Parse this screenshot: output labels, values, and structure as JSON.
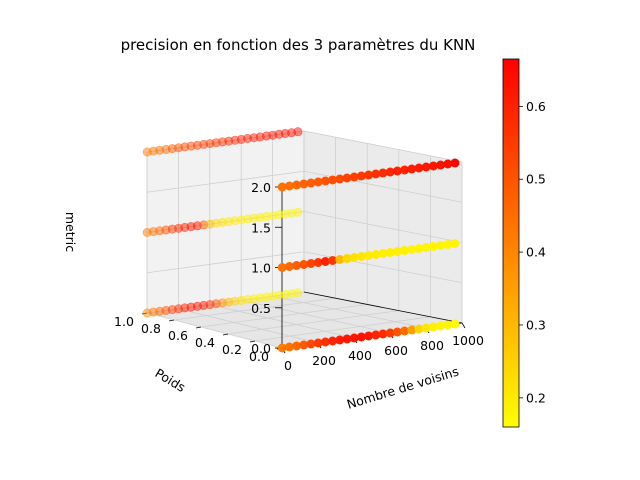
{
  "chart_data": {
    "type": "scatter",
    "title": "precision en fonction des 3 paramètres du KNN",
    "xlabel": "Nombre de voisins",
    "ylabel": "Poids",
    "zlabel": "metric",
    "xlim": [
      0,
      1000
    ],
    "ylim": [
      0,
      1
    ],
    "zlim": [
      0,
      2
    ],
    "xticks": [
      "0",
      "200",
      "400",
      "600",
      "800",
      "1000"
    ],
    "yticks": [
      "0.0",
      "0.2",
      "0.4",
      "0.6",
      "0.8",
      "1.0"
    ],
    "zticks": [
      "0.0",
      "0.5",
      "1.0",
      "1.5",
      "2.0"
    ],
    "colorbar": {
      "colormap": "autumn_r",
      "range": [
        0.16,
        0.665
      ],
      "ticks": [
        "0.2",
        "0.3",
        "0.4",
        "0.5",
        "0.6"
      ],
      "low_color": "#ffff00",
      "high_color": "#ff0000"
    },
    "grid": true,
    "series": [
      {
        "poids": 1,
        "metric": 2,
        "nombre_de_voisins": [
          1,
          41,
          81,
          121,
          161,
          201,
          241,
          281,
          321,
          361,
          401,
          441,
          481,
          521,
          561,
          601,
          641,
          681,
          721,
          761,
          801,
          841,
          881,
          921,
          961
        ],
        "precision": [
          0.42,
          0.43,
          0.44,
          0.46,
          0.48,
          0.5,
          0.51,
          0.52,
          0.53,
          0.54,
          0.55,
          0.56,
          0.57,
          0.58,
          0.59,
          0.6,
          0.6,
          0.61,
          0.61,
          0.62,
          0.62,
          0.62,
          0.63,
          0.63,
          0.63
        ]
      },
      {
        "poids": 0,
        "metric": 2,
        "nombre_de_voisins": [
          1,
          41,
          81,
          121,
          161,
          201,
          241,
          281,
          321,
          361,
          401,
          441,
          481,
          521,
          561,
          601,
          641,
          681,
          721,
          761,
          801,
          841,
          881,
          921,
          961
        ],
        "precision": [
          0.44,
          0.45,
          0.46,
          0.47,
          0.48,
          0.49,
          0.5,
          0.51,
          0.52,
          0.53,
          0.54,
          0.55,
          0.56,
          0.57,
          0.58,
          0.59,
          0.6,
          0.6,
          0.61,
          0.61,
          0.62,
          0.62,
          0.63,
          0.64,
          0.66
        ]
      },
      {
        "poids": 1,
        "metric": 1,
        "nombre_de_voisins": [
          1,
          41,
          81,
          121,
          161,
          201,
          241,
          281,
          321,
          361,
          401,
          441,
          481,
          521,
          561,
          601,
          641,
          681,
          721,
          761,
          801,
          841,
          881,
          921,
          961
        ],
        "precision": [
          0.42,
          0.44,
          0.46,
          0.5,
          0.54,
          0.57,
          0.6,
          0.62,
          0.62,
          0.5,
          0.3,
          0.24,
          0.22,
          0.2,
          0.2,
          0.19,
          0.19,
          0.19,
          0.19,
          0.18,
          0.18,
          0.18,
          0.18,
          0.18,
          0.18
        ]
      },
      {
        "poids": 0,
        "metric": 1,
        "nombre_de_voisins": [
          1,
          41,
          81,
          121,
          161,
          201,
          241,
          281,
          321,
          361,
          401,
          441,
          481,
          521,
          561,
          601,
          641,
          681,
          721,
          761,
          801,
          841,
          881,
          921,
          961
        ],
        "precision": [
          0.44,
          0.46,
          0.48,
          0.5,
          0.53,
          0.56,
          0.6,
          0.55,
          0.3,
          0.24,
          0.22,
          0.21,
          0.2,
          0.2,
          0.19,
          0.19,
          0.19,
          0.19,
          0.18,
          0.18,
          0.18,
          0.18,
          0.18,
          0.18,
          0.18
        ]
      },
      {
        "poids": 1,
        "metric": 0,
        "nombre_de_voisins": [
          1,
          41,
          81,
          121,
          161,
          201,
          241,
          281,
          321,
          361,
          401,
          441,
          481,
          521,
          561,
          601,
          641,
          681,
          721,
          761,
          801,
          841,
          881,
          921,
          961
        ],
        "precision": [
          0.4,
          0.42,
          0.46,
          0.5,
          0.54,
          0.57,
          0.6,
          0.62,
          0.63,
          0.62,
          0.58,
          0.52,
          0.4,
          0.3,
          0.25,
          0.22,
          0.2,
          0.19,
          0.18,
          0.18,
          0.18,
          0.18,
          0.18,
          0.18,
          0.18
        ]
      },
      {
        "poids": 0,
        "metric": 0,
        "nombre_de_voisins": [
          1,
          41,
          81,
          121,
          161,
          201,
          241,
          281,
          321,
          361,
          401,
          441,
          481,
          521,
          561,
          601,
          641,
          681,
          721,
          761,
          801,
          841,
          881,
          921,
          961
        ],
        "precision": [
          0.42,
          0.44,
          0.46,
          0.49,
          0.52,
          0.55,
          0.57,
          0.59,
          0.61,
          0.62,
          0.62,
          0.63,
          0.62,
          0.6,
          0.58,
          0.55,
          0.5,
          0.45,
          0.35,
          0.25,
          0.21,
          0.19,
          0.18,
          0.18,
          0.17
        ]
      }
    ]
  }
}
